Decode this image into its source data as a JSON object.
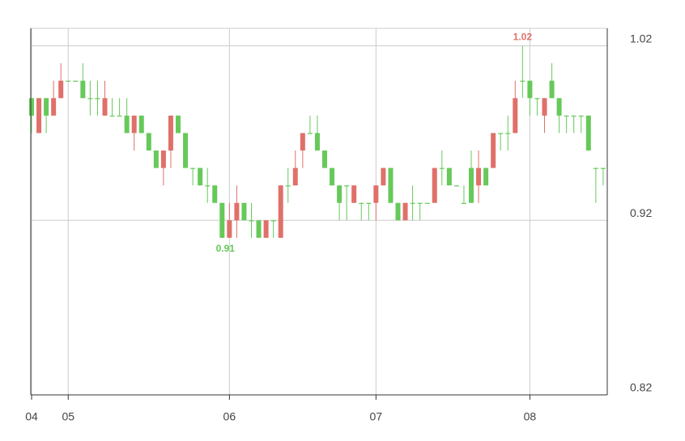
{
  "chart_data": {
    "type": "candlestick",
    "categories": [
      "04",
      null,
      null,
      null,
      null,
      "05",
      null,
      null,
      null,
      null,
      null,
      null,
      null,
      null,
      null,
      null,
      null,
      null,
      null,
      null,
      null,
      null,
      null,
      null,
      null,
      null,
      null,
      "06",
      null,
      null,
      null,
      null,
      null,
      null,
      null,
      null,
      null,
      null,
      null,
      null,
      null,
      null,
      null,
      null,
      null,
      null,
      null,
      "07",
      null,
      null,
      null,
      null,
      null,
      null,
      null,
      null,
      null,
      null,
      null,
      null,
      null,
      null,
      null,
      null,
      null,
      null,
      null,
      null,
      "08",
      null,
      null,
      null,
      null,
      null,
      null,
      null,
      null,
      null,
      null
    ],
    "open": [
      0.99,
      0.97,
      0.99,
      0.98,
      0.99,
      1.0,
      1.0,
      1.0,
      0.99,
      0.99,
      0.98,
      0.98,
      0.98,
      0.98,
      0.97,
      0.98,
      0.97,
      0.96,
      0.95,
      0.96,
      0.98,
      0.97,
      0.95,
      0.95,
      0.94,
      0.94,
      0.93,
      0.91,
      0.92,
      0.93,
      0.92,
      0.92,
      0.91,
      0.92,
      0.91,
      0.94,
      0.94,
      0.96,
      0.97,
      0.97,
      0.96,
      0.95,
      0.94,
      0.94,
      0.93,
      0.93,
      0.93,
      0.93,
      0.94,
      0.95,
      0.93,
      0.92,
      0.93,
      0.93,
      0.93,
      0.93,
      0.95,
      0.95,
      0.94,
      0.93,
      0.95,
      0.94,
      0.95,
      0.95,
      0.97,
      0.97,
      0.97,
      1.0,
      1.0,
      0.99,
      0.98,
      1.0,
      0.99,
      0.98,
      0.98,
      0.98,
      0.98,
      0.95,
      0.95
    ],
    "high": [
      0.99,
      0.99,
      0.99,
      1.0,
      1.01,
      1.0,
      1.0,
      1.01,
      1.0,
      1.0,
      1.0,
      0.99,
      0.99,
      0.99,
      0.98,
      0.98,
      0.97,
      0.96,
      0.96,
      0.98,
      0.98,
      0.97,
      0.95,
      0.95,
      0.95,
      0.94,
      0.93,
      0.93,
      0.94,
      0.93,
      0.93,
      0.92,
      0.92,
      0.92,
      0.94,
      0.95,
      0.96,
      0.97,
      0.98,
      0.98,
      0.96,
      0.95,
      0.94,
      0.94,
      0.94,
      0.93,
      0.93,
      0.94,
      0.95,
      0.95,
      0.93,
      0.93,
      0.94,
      0.93,
      0.93,
      0.95,
      0.96,
      0.95,
      0.94,
      0.94,
      0.96,
      0.96,
      0.95,
      0.97,
      0.97,
      0.98,
      1.0,
      1.02,
      1.0,
      0.99,
      0.99,
      1.01,
      0.99,
      0.98,
      0.98,
      0.98,
      0.98,
      0.95,
      0.95
    ],
    "low": [
      0.97,
      0.97,
      0.97,
      0.98,
      0.99,
      1.0,
      1.0,
      0.99,
      0.98,
      0.98,
      0.98,
      0.98,
      0.98,
      0.97,
      0.96,
      0.97,
      0.96,
      0.95,
      0.94,
      0.95,
      0.97,
      0.95,
      0.94,
      0.94,
      0.93,
      0.93,
      0.91,
      0.91,
      0.91,
      0.92,
      0.91,
      0.91,
      0.91,
      0.91,
      0.91,
      0.93,
      0.94,
      0.95,
      0.97,
      0.96,
      0.95,
      0.94,
      0.92,
      0.92,
      0.93,
      0.92,
      0.92,
      0.92,
      0.94,
      0.93,
      0.92,
      0.92,
      0.92,
      0.92,
      0.93,
      0.93,
      0.94,
      0.94,
      0.94,
      0.93,
      0.93,
      0.93,
      0.94,
      0.95,
      0.96,
      0.96,
      0.97,
      0.99,
      0.98,
      0.98,
      0.97,
      0.99,
      0.97,
      0.97,
      0.97,
      0.97,
      0.96,
      0.93,
      0.94
    ],
    "close": [
      0.98,
      0.99,
      0.98,
      0.99,
      1.0,
      1.0,
      1.0,
      0.99,
      0.99,
      0.99,
      0.99,
      0.98,
      0.98,
      0.97,
      0.98,
      0.97,
      0.96,
      0.95,
      0.96,
      0.98,
      0.97,
      0.95,
      0.95,
      0.94,
      0.94,
      0.93,
      0.91,
      0.92,
      0.93,
      0.92,
      0.92,
      0.91,
      0.92,
      0.92,
      0.94,
      0.94,
      0.95,
      0.97,
      0.97,
      0.96,
      0.95,
      0.94,
      0.93,
      0.94,
      0.94,
      0.93,
      0.93,
      0.94,
      0.95,
      0.93,
      0.92,
      0.93,
      0.93,
      0.93,
      0.93,
      0.95,
      0.95,
      0.94,
      0.94,
      0.93,
      0.93,
      0.95,
      0.94,
      0.97,
      0.97,
      0.97,
      0.99,
      1.0,
      0.99,
      0.99,
      0.99,
      0.99,
      0.98,
      0.98,
      0.98,
      0.98,
      0.96,
      0.95,
      0.95
    ],
    "up_color": "#e0706a",
    "down_color": "#66c95a",
    "max_label": "1.02",
    "min_label": "0.91",
    "ylim": [
      0.82,
      1.03
    ],
    "yticks": [
      0.82,
      0.92,
      1.02
    ],
    "grid": true
  }
}
